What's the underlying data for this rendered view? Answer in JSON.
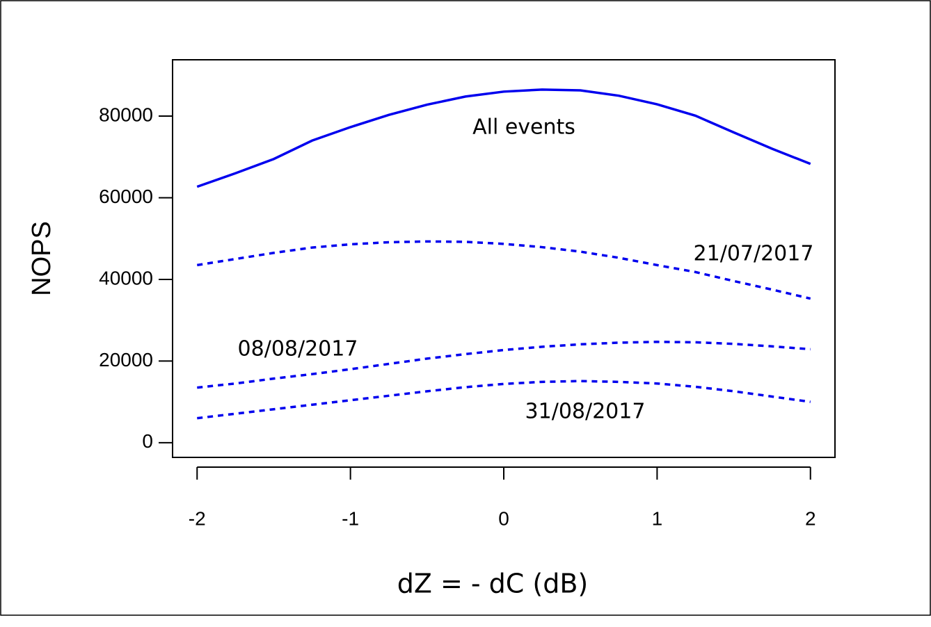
{
  "chart_data": {
    "type": "line",
    "x_label": "dZ = - dC (dB)",
    "y_label": "NOPS",
    "x": [
      -2,
      -1.75,
      -1.5,
      -1.25,
      -1,
      -0.75,
      -0.5,
      -0.25,
      0,
      0.25,
      0.5,
      0.75,
      1,
      1.25,
      1.5,
      1.75,
      2
    ],
    "series": [
      {
        "name": "All events",
        "color": "#0000ee",
        "line_style": "solid",
        "values": [
          62700,
          66000,
          69500,
          74000,
          77300,
          80300,
          82800,
          84800,
          86000,
          86500,
          86300,
          85000,
          82900,
          80100,
          76000,
          72000,
          68300
        ]
      },
      {
        "name": "21/07/2017",
        "color": "#0000ee",
        "line_style": "dotted",
        "values": [
          43500,
          45000,
          46500,
          47800,
          48600,
          49100,
          49300,
          49200,
          48700,
          47900,
          46800,
          45300,
          43500,
          41800,
          39600,
          37500,
          35300
        ]
      },
      {
        "name": "08/08/2017",
        "color": "#0000ee",
        "line_style": "dotted",
        "values": [
          13500,
          14500,
          15700,
          16800,
          18000,
          19300,
          20600,
          21700,
          22700,
          23500,
          24100,
          24500,
          24700,
          24600,
          24200,
          23600,
          22900
        ]
      },
      {
        "name": "31/08/2017",
        "color": "#0000ee",
        "line_style": "dotted",
        "values": [
          6000,
          7100,
          8200,
          9300,
          10400,
          11500,
          12600,
          13600,
          14400,
          14900,
          15100,
          14900,
          14500,
          13700,
          12600,
          11300,
          10000
        ]
      }
    ],
    "xlim": [
      -2.16,
      2.16
    ],
    "xticks": [
      -2,
      -1,
      0,
      1,
      2
    ],
    "ylim": [
      -3600,
      93800
    ],
    "yticks": [
      0,
      20000,
      40000,
      60000,
      80000
    ]
  }
}
